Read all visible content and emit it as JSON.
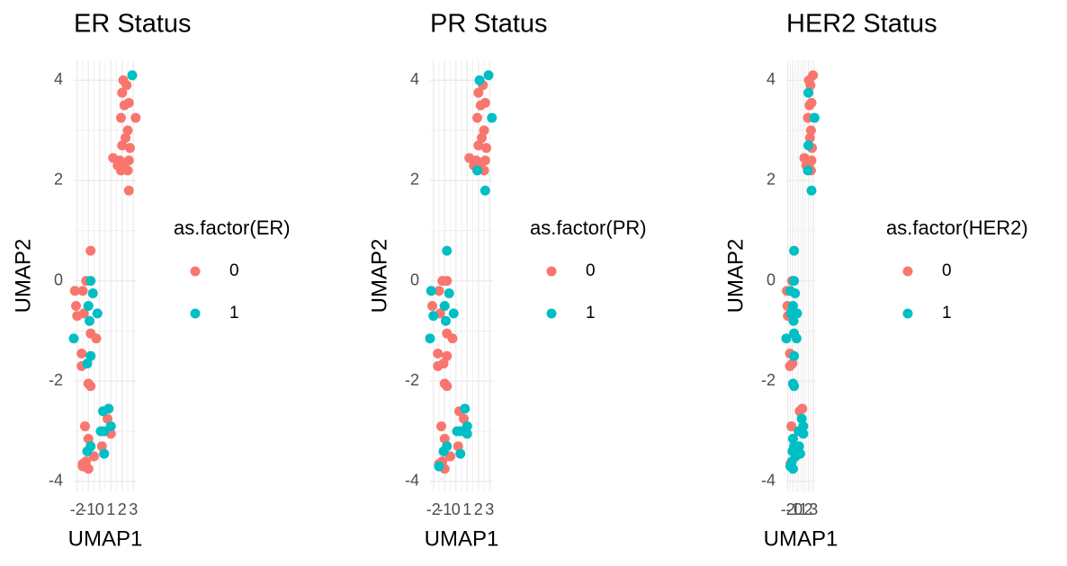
{
  "chart_data": [
    {
      "type": "scatter",
      "title": "ER Status",
      "x_label": "UMAP1",
      "y_label": "UMAP2",
      "legend_title": "as.factor(ER)",
      "legend": "right",
      "grid": true,
      "xlim": [
        -2.3,
        3.3
      ],
      "ylim": [
        -4.2,
        4.4
      ],
      "xticks": [
        -2,
        -1,
        0,
        1,
        2,
        3
      ],
      "yticks": [
        -4,
        -2,
        0,
        2,
        4
      ],
      "series": [
        {
          "name": "0",
          "color": "#F8766D",
          "x": [
            2.1,
            2.4,
            2.0,
            2.6,
            2.2,
            3.2,
            1.9,
            2.5,
            2.3,
            2.7,
            2.0,
            1.2,
            1.8,
            2.6,
            1.9,
            2.5,
            2.6,
            2.2,
            1.6,
            -0.8,
            -2.2,
            -1.2,
            -1.5,
            -2.1,
            -1.4,
            -2.0,
            -0.8,
            -0.3,
            -1.6,
            -1.6,
            -1.0,
            -0.8,
            0.7,
            -1.3,
            1.0,
            -1.0,
            0.2,
            -0.5,
            -1.2,
            -1.5,
            -1.0,
            -1.5
          ],
          "y": [
            4.0,
            3.9,
            3.75,
            3.55,
            3.5,
            3.25,
            3.25,
            3.0,
            2.85,
            2.65,
            2.7,
            2.45,
            2.4,
            2.4,
            2.2,
            2.2,
            1.8,
            2.35,
            2.3,
            0.6,
            -0.2,
            0.0,
            -0.2,
            -0.5,
            -0.65,
            -0.7,
            -1.05,
            -1.15,
            -1.45,
            -1.7,
            -2.05,
            -2.1,
            -2.75,
            -2.9,
            -3.05,
            -3.15,
            -3.3,
            -3.5,
            -3.6,
            -3.7,
            -3.75,
            -3.65
          ]
        },
        {
          "name": "1",
          "color": "#00BFC4",
          "x": [
            2.9,
            -0.8,
            -0.6,
            -1.0,
            -0.2,
            -0.9,
            -2.3,
            -0.8,
            -1.1,
            0.8,
            0.3,
            1.0,
            0.4,
            0.1,
            -0.8,
            -1.1,
            0.4
          ],
          "y": [
            4.1,
            0.0,
            -0.25,
            -0.5,
            -0.65,
            -0.8,
            -1.15,
            -1.5,
            -1.65,
            -2.55,
            -2.6,
            -2.9,
            -3.0,
            -3.0,
            -3.3,
            -3.4,
            -3.45
          ]
        }
      ]
    },
    {
      "type": "scatter",
      "title": "PR Status",
      "x_label": "UMAP1",
      "y_label": "UMAP2",
      "legend_title": "as.factor(PR)",
      "legend": "right",
      "grid": true,
      "xlim": [
        -2.3,
        3.3
      ],
      "ylim": [
        -4.2,
        4.4
      ],
      "xticks": [
        -2,
        -1,
        0,
        1,
        2,
        3
      ],
      "yticks": [
        -4,
        -2,
        0,
        2,
        4
      ],
      "series": [
        {
          "name": "0",
          "color": "#F8766D",
          "x": [
            2.4,
            2.0,
            2.6,
            2.2,
            1.9,
            2.5,
            2.3,
            2.7,
            2.0,
            1.2,
            1.8,
            2.6,
            2.5,
            2.2,
            1.6,
            -1.2,
            -0.8,
            -1.5,
            -2.1,
            -1.4,
            -0.8,
            -0.3,
            -1.6,
            -0.8,
            -1.6,
            -1.1,
            -1.0,
            -0.8,
            0.3,
            0.7,
            -1.3,
            -1.0,
            0.2,
            -0.5,
            -1.2,
            -1.0,
            -1.5
          ],
          "y": [
            3.9,
            3.75,
            3.55,
            3.5,
            3.25,
            3.0,
            2.85,
            2.65,
            2.7,
            2.45,
            2.4,
            2.4,
            2.2,
            2.35,
            2.3,
            0.0,
            0.0,
            -0.2,
            -0.5,
            -0.65,
            -1.05,
            -1.15,
            -1.45,
            -1.5,
            -1.7,
            -1.65,
            -2.05,
            -2.1,
            -2.6,
            -2.75,
            -2.9,
            -3.15,
            -3.3,
            -3.5,
            -3.6,
            -3.75,
            -3.65
          ]
        },
        {
          "name": "1",
          "color": "#00BFC4",
          "x": [
            2.9,
            2.1,
            3.2,
            1.9,
            2.6,
            -0.8,
            -2.2,
            -0.6,
            -1.0,
            -0.2,
            -2.0,
            -0.9,
            -2.3,
            0.8,
            1.0,
            0.4,
            1.0,
            0.1,
            -0.8,
            -1.1,
            0.4,
            -1.5
          ],
          "y": [
            4.1,
            4.0,
            3.25,
            2.2,
            1.8,
            0.6,
            -0.2,
            -0.25,
            -0.5,
            -0.65,
            -0.7,
            -0.8,
            -1.15,
            -2.55,
            -2.9,
            -3.0,
            -3.05,
            -3.0,
            -3.3,
            -3.4,
            -3.45,
            -3.7
          ]
        }
      ]
    },
    {
      "type": "scatter",
      "title": "HER2 Status",
      "x_label": "UMAP1",
      "y_label": "UMAP2",
      "legend_title": "as.factor(HER2)",
      "legend": "right",
      "grid": true,
      "xlim": [
        -2.3,
        3.3
      ],
      "ylim": [
        -4.2,
        4.4
      ],
      "xticks": [
        -2,
        -1,
        0,
        1,
        2,
        3
      ],
      "yticks": [
        -4,
        -2,
        0,
        2,
        4
      ],
      "series": [
        {
          "name": "0",
          "color": "#F8766D",
          "x": [
            2.9,
            2.1,
            2.4,
            2.6,
            2.2,
            1.9,
            2.5,
            2.3,
            2.7,
            1.2,
            1.8,
            2.6,
            2.5,
            2.2,
            1.6,
            -2.2,
            -1.2,
            -2.1,
            -2.0,
            -1.6,
            -1.6,
            -1.1,
            0.8,
            0.3,
            -1.3,
            0.4,
            -1.5
          ],
          "y": [
            4.1,
            4.0,
            3.9,
            3.55,
            3.5,
            3.25,
            3.0,
            2.85,
            2.65,
            2.45,
            2.4,
            2.4,
            2.2,
            2.35,
            2.3,
            -0.2,
            0.0,
            -0.5,
            -0.7,
            -1.45,
            -1.7,
            -1.65,
            -2.55,
            -2.6,
            -2.9,
            -3.0,
            -3.65
          ]
        },
        {
          "name": "1",
          "color": "#00BFC4",
          "x": [
            2.0,
            3.2,
            2.0,
            1.9,
            2.6,
            -0.8,
            -0.8,
            -1.5,
            -0.6,
            -1.0,
            -1.4,
            -0.2,
            -0.9,
            -0.8,
            -0.3,
            -2.3,
            -0.8,
            -1.0,
            -0.8,
            0.7,
            1.0,
            1.0,
            0.1,
            -1.0,
            -0.8,
            0.2,
            -1.1,
            0.4,
            -0.5,
            -1.2,
            -1.5,
            -1.0
          ],
          "y": [
            3.75,
            3.25,
            2.7,
            2.2,
            1.8,
            0.6,
            0.0,
            -0.2,
            -0.25,
            -0.5,
            -0.65,
            -0.65,
            -0.8,
            -1.05,
            -1.15,
            -1.15,
            -1.5,
            -2.05,
            -2.1,
            -2.75,
            -2.9,
            -3.05,
            -3.0,
            -3.15,
            -3.3,
            -3.3,
            -3.4,
            -3.45,
            -3.5,
            -3.6,
            -3.7,
            -3.75
          ]
        }
      ]
    }
  ]
}
